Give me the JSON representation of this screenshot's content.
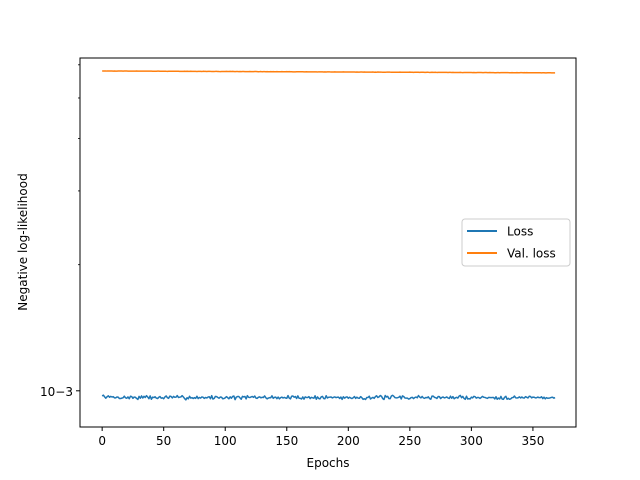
{
  "chart_data": {
    "type": "line",
    "xlabel": "Epochs",
    "ylabel": "Negative log-likelihood",
    "xlim": [
      -18,
      385
    ],
    "ylim_log10": [
      -3.0864,
      -2.2056
    ],
    "y_scale": "log",
    "x_ticks": [
      0,
      50,
      100,
      150,
      200,
      250,
      300,
      350
    ],
    "x_tick_labels": [
      "0",
      "50",
      "100",
      "150",
      "200",
      "250",
      "300",
      "350"
    ],
    "y_ticks": [
      0.001
    ],
    "y_tick_labels": [
      "10−3"
    ],
    "legend_placement": "center-right",
    "grid": false,
    "series": [
      {
        "name": "Loss",
        "color": "#1f77b4",
        "x": [
          0,
          368
        ],
        "y_mean": 0.000964,
        "y_noise": 8e-06,
        "seed": 7
      },
      {
        "name": "Val. loss",
        "color": "#ff7f0e",
        "x": [
          0,
          368
        ],
        "y_start": 0.0058,
        "y_end": 0.00574,
        "y_noise": 3.5e-06,
        "seed": 13
      }
    ]
  }
}
